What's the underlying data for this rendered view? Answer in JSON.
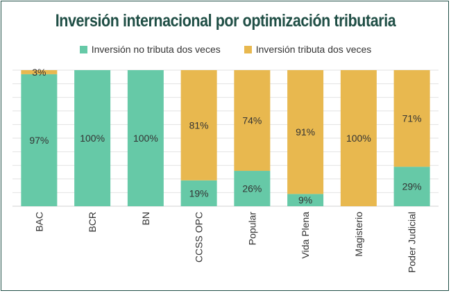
{
  "chart_data": {
    "type": "bar",
    "stacked": true,
    "title": "Inversión internacional por optimización tributaria",
    "categories": [
      "BAC",
      "BCR",
      "BN",
      "CCSS OPC",
      "Popular",
      "Vida Plena",
      "Magisterio",
      "Poder Judicial"
    ],
    "series": [
      {
        "name": "Inversión no tributa dos veces",
        "color": "#66c9a7",
        "values": [
          97,
          100,
          100,
          19,
          26,
          9,
          0,
          29
        ]
      },
      {
        "name": "Inversión tributa dos veces",
        "color": "#e8b84f",
        "values": [
          3,
          0,
          0,
          81,
          74,
          91,
          100,
          71
        ]
      }
    ],
    "ylim": [
      0,
      100
    ],
    "legend_position": "top",
    "grid": true,
    "value_suffix": "%"
  }
}
